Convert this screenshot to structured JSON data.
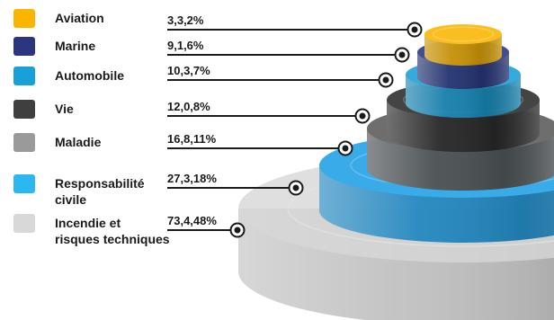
{
  "chart_data": {
    "type": "bar",
    "title": "",
    "categories": [
      [
        "Aviation"
      ],
      [
        "Marine"
      ],
      [
        "Automobile"
      ],
      [
        "Vie"
      ],
      [
        "Maladie"
      ],
      [
        "Responsabilité",
        "civile"
      ],
      [
        "Incendie et",
        "risques techniques"
      ]
    ],
    "value_labels": [
      "3,3,2%",
      "9,1,6%",
      "10,3,7%",
      "12,0,8%",
      "16,8,11%",
      "27,3,18%",
      "73,4,48%"
    ],
    "values": [
      3.3,
      9.1,
      10.3,
      12.0,
      16.8,
      27.3,
      73.4
    ],
    "shares_percent": [
      2,
      6,
      7,
      8,
      11,
      18,
      48
    ],
    "colors": [
      "#f9b500",
      "#2b3580",
      "#1aa0d8",
      "#3f3f3f",
      "#9a9a9a",
      "#2bb8ee",
      "#d8d8d8"
    ],
    "tier_colors": [
      "#f9b500",
      "#2b3580",
      "#1aa0d8",
      "#2a2a2a",
      "#5a5a5a",
      "#1f9fe6",
      "#d2d2d2"
    ],
    "legend_placement": "left",
    "grid": false
  }
}
